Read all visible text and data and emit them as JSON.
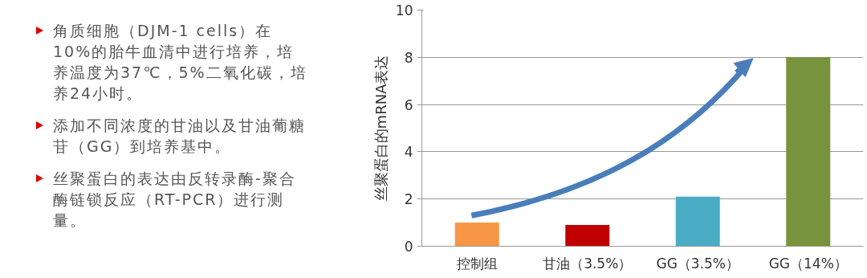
{
  "chart_data": {
    "type": "bar",
    "ylabel": "丝聚蛋白的mRNA表达",
    "categories": [
      "控制组",
      "甘油（3.5%）",
      "GG（3.5%）",
      "GG（14%）"
    ],
    "values": [
      1.0,
      0.9,
      2.1,
      8.0
    ],
    "colors": [
      "#f79646",
      "#c00000",
      "#4bacc6",
      "#77933c"
    ],
    "ylim": [
      0,
      10
    ],
    "yticks": [
      0,
      2,
      4,
      6,
      8,
      10
    ],
    "grid": "y",
    "annotations": [
      "角质细胞（DJM-1 cells）在10%的胎牛血清中进行培养，培养温度为37℃，5%二氧化碳，培养24小时。",
      "添加不同浓度的甘油以及甘油葡糖苷（GG）到培养基中。",
      "丝聚蛋白的表达由反转录酶-聚合酶链锁反应（RT-PCR）进行测量。"
    ]
  }
}
